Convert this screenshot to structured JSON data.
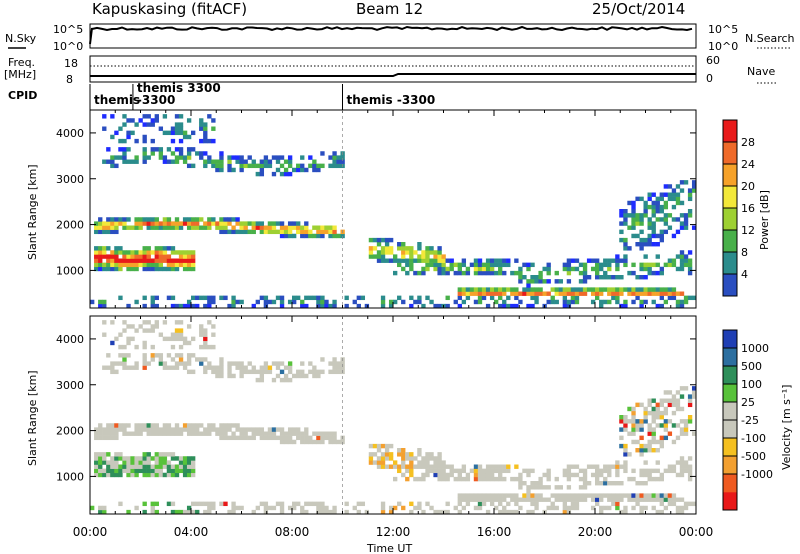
{
  "header": {
    "station": "Kapuskasing (fitACF)",
    "beam": "Beam 12",
    "date": "25/Oct/2014"
  },
  "noise_panel": {
    "left_label": "N.Sky",
    "right_label": "N.Search",
    "left_ticks": [
      "10^5",
      "10^0"
    ],
    "right_ticks": [
      "10^5",
      "10^0"
    ]
  },
  "freq_panel": {
    "left_label_line1": "Freq.",
    "left_label_line2": "[MHz]",
    "right_label": "Nave",
    "left_ticks": [
      "18",
      "8"
    ],
    "right_ticks": [
      "60",
      "0"
    ]
  },
  "cpid_panel": {
    "label": "CPID",
    "segments": [
      {
        "line1": "themis",
        "line2": "",
        "start_hour": 0
      },
      {
        "line1": "themis  3300",
        "line2": "-3300",
        "start_hour": 1.7
      },
      {
        "line1": "themis  -3300",
        "line2": "",
        "start_hour": 10.0
      }
    ]
  },
  "chart_data": [
    {
      "type": "heatmap",
      "title": "",
      "ylabel": "Slant Range [km]",
      "colorbar_label": "Power [dB]",
      "colorbar_ticks": [
        "28",
        "24",
        "20",
        "16",
        "12",
        "8",
        "4"
      ],
      "colors": [
        "#1e2cff",
        "#2a4ec0",
        "#2b8c8c",
        "#48b04a",
        "#9ed032",
        "#f3e83a",
        "#f6a22a",
        "#ef6a2a",
        "#e81a1a"
      ],
      "ylim": [
        180,
        4500
      ],
      "yticks": [
        1000,
        2000,
        3000,
        4000
      ],
      "xlim": [
        0,
        24
      ]
    },
    {
      "type": "heatmap",
      "title": "",
      "ylabel": "Slant Range [km]",
      "colorbar_label": "Velocity [m s⁻¹]",
      "colorbar_ticks": [
        "1000",
        "500",
        "100",
        "25",
        "-25",
        "-100",
        "-500",
        "-1000"
      ],
      "colors": [
        "#1f3fb4",
        "#2c6fa0",
        "#2e8f5a",
        "#58c23a",
        "#c8c8bc",
        "#c8c8bc",
        "#f5c020",
        "#f3a030",
        "#ef5a20",
        "#e81818"
      ],
      "ylim": [
        180,
        4500
      ],
      "yticks": [
        1000,
        2000,
        3000,
        4000
      ],
      "xlim": [
        0,
        24
      ]
    }
  ],
  "x_axis": {
    "ticks": [
      "00:00",
      "04:00",
      "08:00",
      "12:00",
      "16:00",
      "20:00",
      "00:00"
    ],
    "label": "Time UT"
  }
}
